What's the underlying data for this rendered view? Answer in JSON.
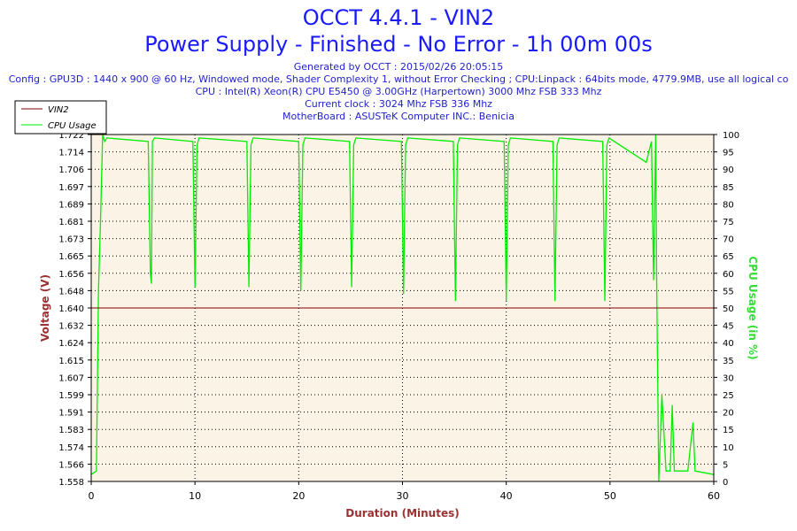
{
  "header": {
    "title": "OCCT 4.4.1 - VIN2",
    "subtitle": "Power Supply - Finished - No Error - 1h 00m 00s",
    "info_lines": [
      "Generated by OCCT : 2015/02/26 20:05:15",
      "Config : GPU3D : 1440 x 900 @ 60 Hz, Windowed mode, Shader Complexity 1, without Error Checking ; CPU:Linpack : 64bits mode, 4779.9MB, use all logical co",
      "CPU : Intel(R) Xeon(R) CPU E5450 @ 3.00GHz (Harpertown) 3000 Mhz FSB 333 Mhz",
      "Current clock : 3024 Mhz FSB 336 Mhz",
      "MotherBoard : ASUSTeK Computer INC.: Benicia"
    ]
  },
  "chart_data": {
    "type": "line",
    "xlabel": "Duration (Minutes)",
    "ylabel_left": "Voltage (V)",
    "ylabel_right": "CPU Usage (in %)",
    "xlim": [
      0,
      60
    ],
    "ylim_left": [
      1.558,
      1.722
    ],
    "ylim_right": [
      0,
      100
    ],
    "x_ticks": [
      0,
      10,
      20,
      30,
      40,
      50,
      60
    ],
    "y_ticks_left": [
      "1.558",
      "1.566",
      "1.574",
      "1.583",
      "1.591",
      "1.599",
      "1.607",
      "1.615",
      "1.624",
      "1.632",
      "1.640",
      "1.648",
      "1.656",
      "1.665",
      "1.673",
      "1.681",
      "1.689",
      "1.697",
      "1.706",
      "1.714",
      "1.722"
    ],
    "y_ticks_right": [
      0,
      5,
      10,
      15,
      20,
      25,
      30,
      35,
      40,
      45,
      50,
      55,
      60,
      65,
      70,
      75,
      80,
      85,
      90,
      95,
      100
    ],
    "grid": true,
    "legend_position": "top-left",
    "colors": {
      "vin2": "#800000",
      "cpu": "#00ee00",
      "background": "#fbf3e6",
      "axis_title": "#993333",
      "cpu_axis_title": "#33dd33",
      "title": "#1a1aff"
    },
    "series": [
      {
        "name": "VIN2",
        "axis": "left",
        "x": [
          0,
          60
        ],
        "y": [
          1.64,
          1.64
        ]
      },
      {
        "name": "CPU Usage",
        "axis": "right",
        "x": [
          0,
          0.5,
          0.7,
          0.9,
          1.1,
          1.3,
          1.5,
          5.5,
          5.7,
          5.8,
          5.9,
          6.1,
          9.8,
          10.0,
          10.2,
          10.4,
          15.0,
          15.2,
          15.4,
          15.6,
          20.0,
          20.2,
          20.4,
          20.6,
          24.9,
          25.1,
          25.3,
          25.5,
          29.9,
          30.1,
          30.3,
          30.5,
          34.9,
          35.1,
          35.3,
          35.5,
          39.8,
          40.0,
          40.2,
          40.4,
          44.5,
          44.7,
          44.9,
          45.1,
          49.3,
          49.5,
          49.7,
          49.9,
          53.5,
          54.0,
          54.2,
          54.4,
          54.5,
          54.7,
          55.0,
          55.4,
          55.8,
          56.0,
          56.2,
          57.5,
          58.0,
          58.2,
          60
        ],
        "y": [
          2,
          3,
          55,
          75,
          100,
          98,
          99,
          98,
          60,
          57,
          98,
          99,
          98,
          56,
          97,
          99,
          98,
          56,
          97,
          99,
          98,
          55,
          97,
          99,
          98,
          56,
          97,
          99,
          98,
          54,
          97,
          99,
          98,
          52,
          97,
          99,
          98,
          52,
          97,
          99,
          98,
          52,
          97,
          99,
          98,
          52,
          97,
          99,
          92,
          98,
          58,
          100,
          56,
          0,
          25,
          3,
          3,
          22,
          3,
          3,
          17,
          3,
          2
        ]
      }
    ]
  },
  "legend": {
    "vin2": "VIN2",
    "cpu": "CPU Usage"
  }
}
